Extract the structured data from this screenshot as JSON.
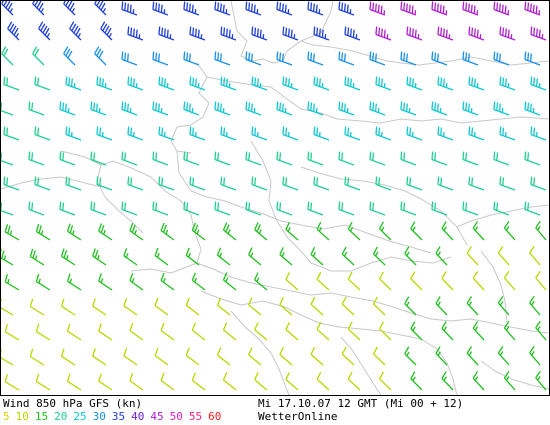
{
  "footer": {
    "title": "Wind 850 hPa GFS (kn)",
    "datetime": "Mi 17.10.07 12 GMT (Mi 00 + 12)",
    "source": "WetterOnline"
  },
  "legend": [
    {
      "label": "5",
      "color": "#e0d000"
    },
    {
      "label": "10",
      "color": "#b8d800"
    },
    {
      "label": "15",
      "color": "#20c020"
    },
    {
      "label": "20",
      "color": "#20d090"
    },
    {
      "label": "25",
      "color": "#10c8d0"
    },
    {
      "label": "30",
      "color": "#1890e8"
    },
    {
      "label": "35",
      "color": "#2040d8"
    },
    {
      "label": "40",
      "color": "#7020d0"
    },
    {
      "label": "45",
      "color": "#b020d0"
    },
    {
      "label": "50",
      "color": "#e020c0"
    },
    {
      "label": "55",
      "color": "#ff2080"
    },
    {
      "label": "60",
      "color": "#ff2020"
    }
  ],
  "map": {
    "border_color": "#c8c8c8"
  }
}
